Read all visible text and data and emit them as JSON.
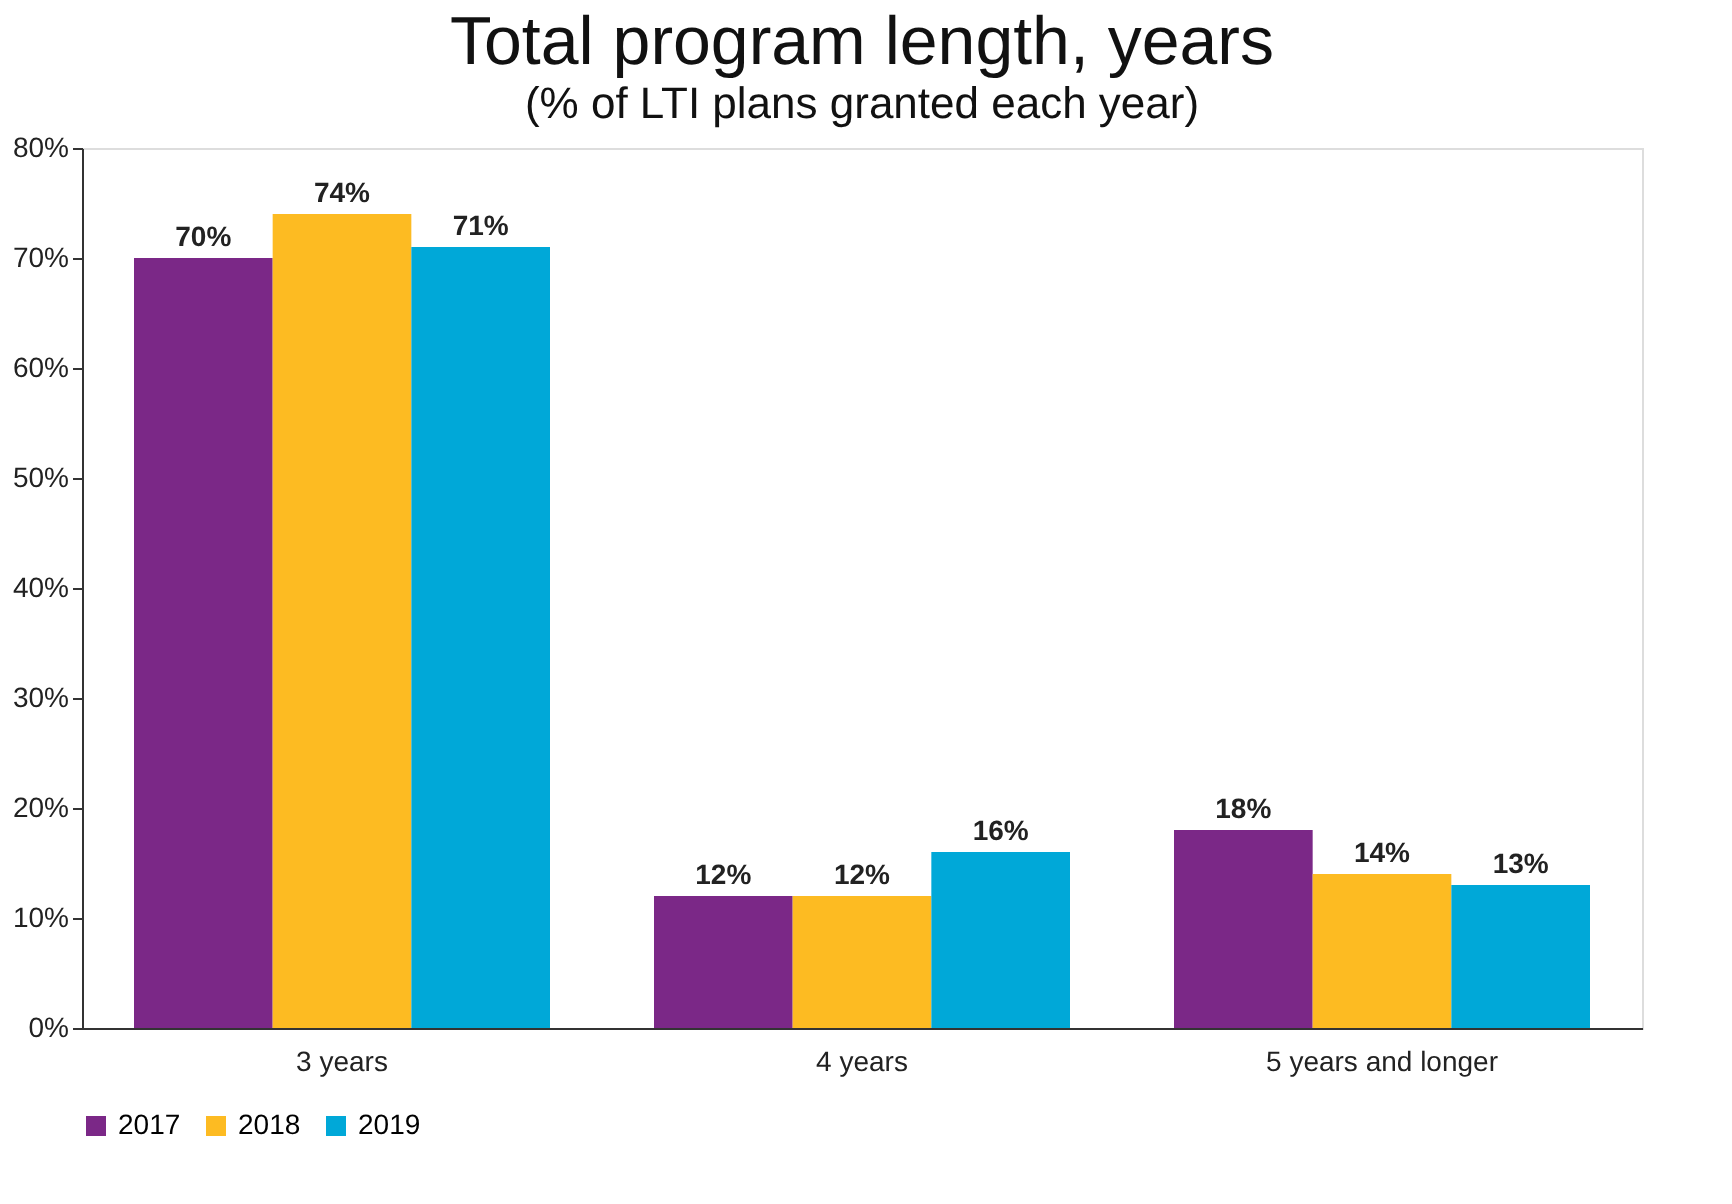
{
  "chart_data": {
    "type": "bar",
    "title": "Total program length, years",
    "subtitle": "(% of LTI plans granted each year)",
    "categories": [
      "3 years",
      "4 years",
      "5 years and longer"
    ],
    "series": [
      {
        "name": "2017",
        "color": "#7b2887",
        "values": [
          70,
          12,
          18
        ],
        "value_labels": [
          "70%",
          "12%",
          "18%"
        ]
      },
      {
        "name": "2018",
        "color": "#fdbb22",
        "values": [
          74,
          12,
          14
        ],
        "value_labels": [
          "74%",
          "12%",
          "14%"
        ]
      },
      {
        "name": "2019",
        "color": "#00a8d8",
        "values": [
          71,
          16,
          13
        ],
        "value_labels": [
          "71%",
          "16%",
          "13%"
        ]
      }
    ],
    "ylim": [
      0,
      80
    ],
    "yticks": [
      {
        "value": 0,
        "label": "0%"
      },
      {
        "value": 10,
        "label": "10%"
      },
      {
        "value": 20,
        "label": "20%"
      },
      {
        "value": 30,
        "label": "30%"
      },
      {
        "value": 40,
        "label": "40%"
      },
      {
        "value": 50,
        "label": "50%"
      },
      {
        "value": 60,
        "label": "60%"
      },
      {
        "value": 70,
        "label": "70%"
      },
      {
        "value": 80,
        "label": "80%"
      }
    ],
    "grid": false,
    "legend": "bottom"
  }
}
